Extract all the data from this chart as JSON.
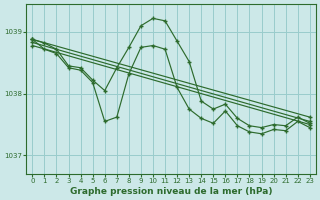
{
  "title": "Graphe pression niveau de la mer (hPa)",
  "bg_color": "#cce8e8",
  "grid_color": "#99cccc",
  "line_color": "#2d6b2d",
  "xlim": [
    -0.5,
    23.5
  ],
  "ylim": [
    1036.7,
    1039.45
  ],
  "yticks": [
    1037,
    1038,
    1039
  ],
  "xtick_labels": [
    "0",
    "1",
    "2",
    "3",
    "4",
    "5",
    "6",
    "7",
    "8",
    "9",
    "10",
    "11",
    "12",
    "13",
    "14",
    "15",
    "16",
    "17",
    "18",
    "19",
    "20",
    "21",
    "22",
    "23"
  ],
  "series": [
    {
      "x": [
        0,
        23
      ],
      "y": [
        1038.88,
        1037.62
      ]
    },
    {
      "x": [
        0,
        23
      ],
      "y": [
        1038.83,
        1037.55
      ]
    },
    {
      "x": [
        0,
        23
      ],
      "y": [
        1038.78,
        1037.5
      ]
    },
    {
      "x": [
        0,
        1,
        2,
        3,
        4,
        5,
        6,
        7,
        8,
        9,
        10,
        11,
        12,
        13,
        14,
        15,
        16,
        17,
        18,
        19,
        20,
        21,
        22,
        23
      ],
      "y": [
        1038.88,
        1038.82,
        1038.72,
        1038.45,
        1038.42,
        1038.22,
        1038.05,
        1038.42,
        1038.75,
        1039.1,
        1039.22,
        1039.18,
        1038.85,
        1038.52,
        1037.88,
        1037.75,
        1037.83,
        1037.6,
        1037.48,
        1037.45,
        1037.5,
        1037.48,
        1037.62,
        1037.52
      ]
    },
    {
      "x": [
        0,
        1,
        2,
        3,
        4,
        5,
        6,
        7,
        8,
        9,
        10,
        11,
        12,
        13,
        14,
        15,
        16,
        17,
        18,
        19,
        20,
        21,
        22,
        23
      ],
      "y": [
        1038.88,
        1038.72,
        1038.65,
        1038.42,
        1038.38,
        1038.18,
        1037.55,
        1037.62,
        1038.32,
        1038.75,
        1038.78,
        1038.72,
        1038.1,
        1037.75,
        1037.6,
        1037.52,
        1037.72,
        1037.48,
        1037.38,
        1037.35,
        1037.42,
        1037.4,
        1037.55,
        1037.45
      ]
    }
  ]
}
